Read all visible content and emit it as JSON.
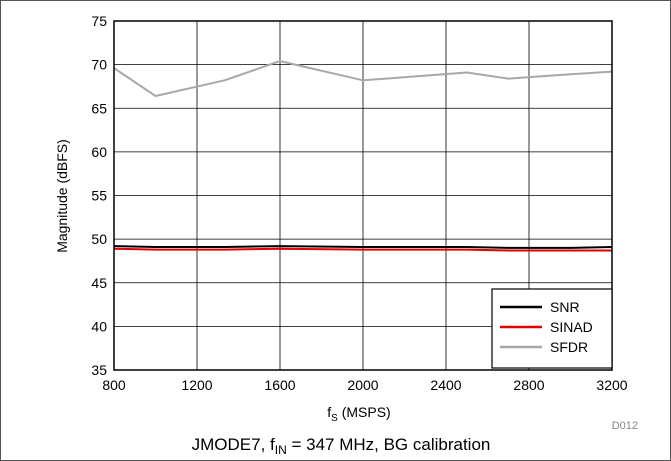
{
  "chart_data": {
    "type": "line",
    "xlabel_main": "f",
    "xlabel_sub": "S",
    "xlabel_rest": " (MSPS)",
    "ylabel": "Magnitude (dBFS)",
    "xlim": [
      800,
      3200
    ],
    "ylim": [
      35,
      75
    ],
    "xticks": [
      "800",
      "1200",
      "1600",
      "2000",
      "2400",
      "2800",
      "3200"
    ],
    "yticks": [
      "35",
      "40",
      "45",
      "50",
      "55",
      "60",
      "65",
      "70",
      "75"
    ],
    "grid": true,
    "legend_position": "bottom-right",
    "series": [
      {
        "name": "SNR",
        "color": "#000000",
        "x": [
          800,
          1000,
          1333,
          1600,
          2000,
          2500,
          2700,
          3000,
          3200
        ],
        "values": [
          49.2,
          49.1,
          49.1,
          49.2,
          49.1,
          49.1,
          49.0,
          49.0,
          49.1
        ]
      },
      {
        "name": "SINAD",
        "color": "#e00000",
        "x": [
          800,
          1000,
          1333,
          1600,
          2000,
          2500,
          2700,
          3000,
          3200
        ],
        "values": [
          48.9,
          48.8,
          48.8,
          48.9,
          48.8,
          48.8,
          48.7,
          48.7,
          48.7
        ]
      },
      {
        "name": "SFDR",
        "color": "#a8a8a8",
        "x": [
          800,
          1000,
          1333,
          1600,
          2000,
          2500,
          2700,
          3000,
          3200
        ],
        "values": [
          69.6,
          66.4,
          68.2,
          70.4,
          68.2,
          69.1,
          68.4,
          68.9,
          69.2
        ]
      }
    ],
    "figure_id": "D012",
    "caption": {
      "prefix": "JMODE7, f",
      "sub": "IN",
      "suffix": " = 347 MHz, BG calibration"
    }
  }
}
